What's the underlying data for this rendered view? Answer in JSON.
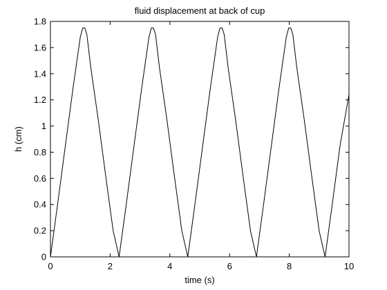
{
  "chart_data": {
    "type": "line",
    "title": "fluid displacement at back of cup",
    "xlabel": "time (s)",
    "ylabel": "h (cm)",
    "xlim": [
      0,
      10
    ],
    "ylim": [
      0,
      1.8
    ],
    "xticks": [
      0,
      2,
      4,
      6,
      8,
      10
    ],
    "yticks": [
      0,
      0.2,
      0.4,
      0.6,
      0.8,
      1,
      1.2,
      1.4,
      1.6,
      1.8
    ],
    "xtick_labels": [
      "0",
      "2",
      "4",
      "6",
      "8",
      "10"
    ],
    "ytick_labels": [
      "0",
      "0.2",
      "0.4",
      "0.6",
      "0.8",
      "1",
      "1.2",
      "1.4",
      "1.6",
      "1.8"
    ],
    "grid": false,
    "series": [
      {
        "color": "#000000",
        "x": [
          0,
          0.25,
          0.5,
          0.75,
          1.0,
          1.08,
          1.15,
          1.22,
          1.35,
          1.6,
          1.85,
          2.1,
          2.3,
          2.55,
          2.8,
          3.05,
          3.3,
          3.38,
          3.45,
          3.52,
          3.65,
          3.9,
          4.15,
          4.4,
          4.6,
          4.85,
          5.1,
          5.35,
          5.6,
          5.68,
          5.75,
          5.82,
          5.95,
          6.2,
          6.45,
          6.7,
          6.9,
          7.15,
          7.4,
          7.65,
          7.9,
          7.98,
          8.05,
          8.12,
          8.25,
          8.5,
          8.75,
          9.0,
          9.2,
          9.45,
          9.7,
          10.0
        ],
        "y": [
          0,
          0.42,
          0.85,
          1.28,
          1.68,
          1.75,
          1.75,
          1.7,
          1.45,
          1.05,
          0.62,
          0.2,
          0,
          0.42,
          0.85,
          1.28,
          1.68,
          1.75,
          1.75,
          1.7,
          1.45,
          1.05,
          0.62,
          0.2,
          0,
          0.42,
          0.85,
          1.28,
          1.68,
          1.75,
          1.75,
          1.7,
          1.45,
          1.05,
          0.62,
          0.2,
          0,
          0.42,
          0.85,
          1.28,
          1.68,
          1.75,
          1.75,
          1.7,
          1.45,
          1.05,
          0.62,
          0.2,
          0,
          0.42,
          0.85,
          1.24
        ]
      }
    ]
  }
}
